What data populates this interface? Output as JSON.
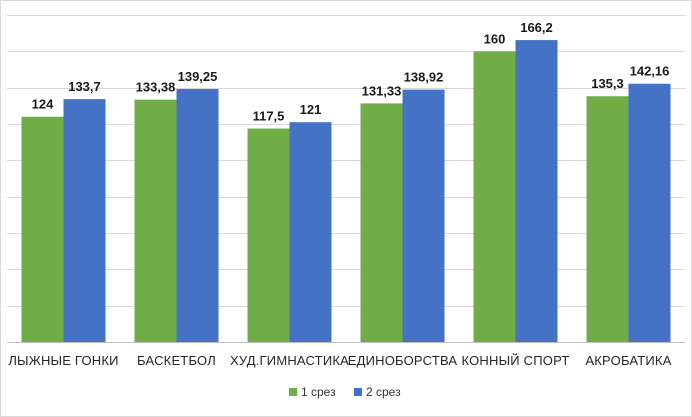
{
  "chart_data": {
    "type": "bar",
    "categories": [
      "ЛЫЖНЫЕ ГОНКИ",
      "БАСКЕТБОЛ",
      "ХУД.ГИМНАСТИКА",
      "ЕДИНОБОРСТВА",
      "КОННЫЙ СПОРТ",
      "АКРОБАТИКА"
    ],
    "series": [
      {
        "name": "1 срез",
        "color": "#70ad47",
        "values": [
          124,
          133.38,
          117.5,
          131.33,
          160,
          135.3
        ],
        "labels": [
          "124",
          "133,38",
          "117,5",
          "131,33",
          "160",
          "135,3"
        ]
      },
      {
        "name": "2 срез",
        "color": "#4472c4",
        "values": [
          133.7,
          139.25,
          121,
          138.92,
          166.2,
          142.16
        ],
        "labels": [
          "133,7",
          "139,25",
          "121",
          "138,92",
          "166,2",
          "142,16"
        ]
      }
    ],
    "ylim": [
      0,
      180
    ],
    "y_tick_step": 20,
    "grid": true,
    "show_y_axis_labels": false,
    "legend_position": "bottom"
  }
}
